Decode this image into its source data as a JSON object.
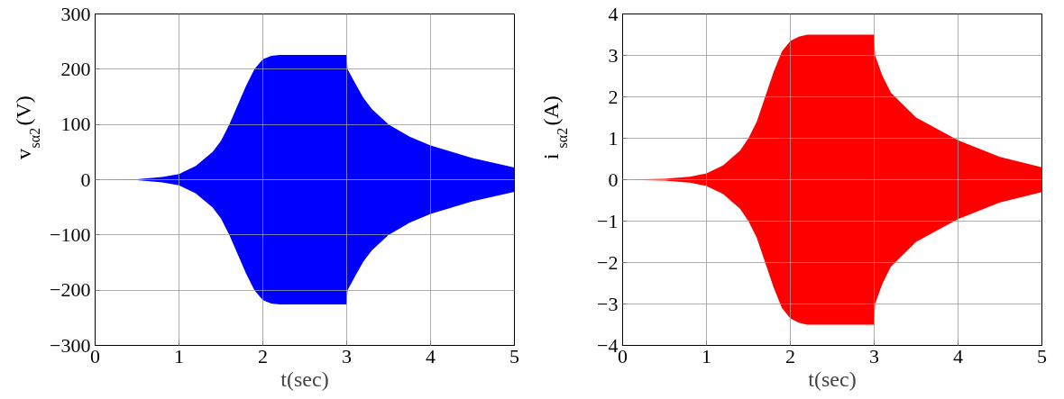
{
  "chart_data": [
    {
      "type": "area",
      "xlabel": "t(sec)",
      "ylabel": "v$_{sα2}$(V)",
      "xlim": [
        0,
        5
      ],
      "ylim": [
        -300,
        300
      ],
      "xticks": [
        0,
        1,
        2,
        3,
        4,
        5
      ],
      "yticks": [
        -300,
        -200,
        -100,
        0,
        100,
        200,
        300
      ],
      "grid": true,
      "series": [
        {
          "color": "#0000ff",
          "x": [
            0,
            0.5,
            0.8,
            1.0,
            1.2,
            1.4,
            1.5,
            1.6,
            1.7,
            1.8,
            1.9,
            2.0,
            2.1,
            2.2,
            3.0,
            3.01,
            3.1,
            3.2,
            3.3,
            3.5,
            3.75,
            4.0,
            4.5,
            5.0
          ],
          "values": [
            0,
            1,
            5,
            10,
            25,
            50,
            70,
            100,
            135,
            170,
            200,
            218,
            224,
            226,
            226,
            200,
            175,
            148,
            128,
            100,
            78,
            62,
            39,
            22
          ]
        },
        {
          "color": "#0000ff",
          "x": [
            0,
            0.5,
            0.8,
            1.0,
            1.2,
            1.4,
            1.5,
            1.6,
            1.7,
            1.8,
            1.9,
            2.0,
            2.1,
            2.2,
            3.0,
            3.01,
            3.1,
            3.2,
            3.3,
            3.5,
            3.75,
            4.0,
            4.5,
            5.0
          ],
          "values": [
            0,
            -1,
            -5,
            -10,
            -25,
            -50,
            -70,
            -100,
            -135,
            -170,
            -200,
            -218,
            -224,
            -226,
            -226,
            -200,
            -175,
            -148,
            -128,
            -100,
            -78,
            -62,
            -39,
            -22
          ]
        }
      ]
    },
    {
      "type": "area",
      "xlabel": "t(sec)",
      "ylabel": "i$_{sα2}$(A)",
      "xlim": [
        0,
        5
      ],
      "ylim": [
        -4,
        4
      ],
      "xticks": [
        0,
        1,
        2,
        3,
        4,
        5
      ],
      "yticks": [
        -4,
        -3,
        -2,
        -1,
        0,
        1,
        2,
        3,
        4
      ],
      "grid": true,
      "series": [
        {
          "color": "#ff0000",
          "x": [
            0,
            0.5,
            0.8,
            1.0,
            1.2,
            1.4,
            1.5,
            1.6,
            1.7,
            1.8,
            1.9,
            2.0,
            2.1,
            2.2,
            3.0,
            3.01,
            3.1,
            3.2,
            3.5,
            4.0,
            4.5,
            5.0
          ],
          "values": [
            0,
            0.02,
            0.07,
            0.15,
            0.35,
            0.7,
            1.0,
            1.4,
            2.0,
            2.6,
            3.1,
            3.35,
            3.45,
            3.5,
            3.5,
            3.0,
            2.5,
            2.1,
            1.5,
            0.95,
            0.55,
            0.3
          ]
        },
        {
          "color": "#ff0000",
          "x": [
            0,
            0.5,
            0.8,
            1.0,
            1.2,
            1.4,
            1.5,
            1.6,
            1.7,
            1.8,
            1.9,
            2.0,
            2.1,
            2.2,
            3.0,
            3.01,
            3.1,
            3.2,
            3.5,
            4.0,
            4.5,
            5.0
          ],
          "values": [
            0,
            -0.02,
            -0.07,
            -0.15,
            -0.35,
            -0.7,
            -1.0,
            -1.4,
            -2.0,
            -2.6,
            -3.1,
            -3.35,
            -3.45,
            -3.5,
            -3.5,
            -3.0,
            -2.5,
            -2.1,
            -1.5,
            -0.95,
            -0.55,
            -0.3
          ]
        }
      ]
    }
  ]
}
